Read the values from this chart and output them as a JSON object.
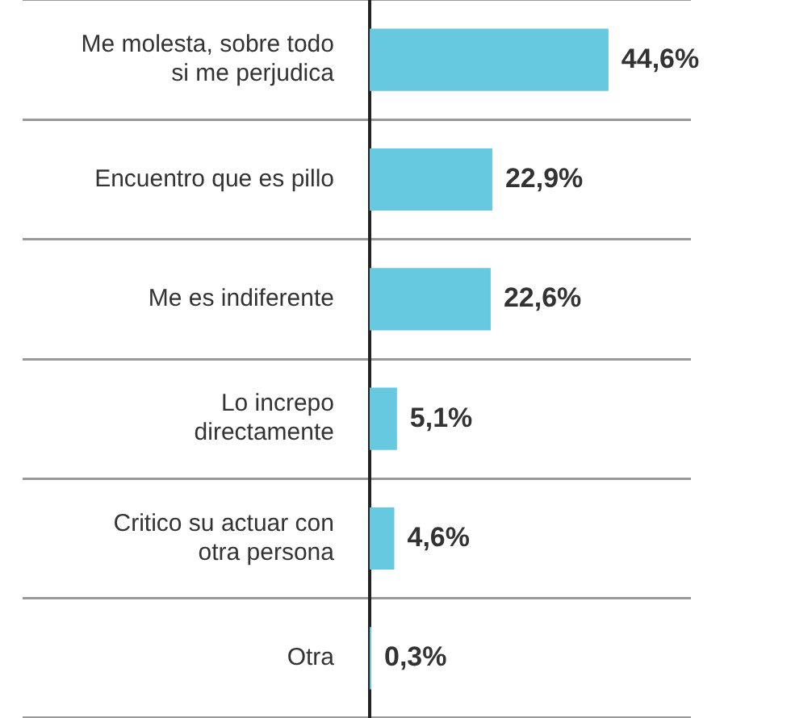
{
  "chart_data": {
    "type": "bar",
    "orientation": "horizontal",
    "categories": [
      "Me molesta, sobre todo si me perjudica",
      "Encuentro que es pillo",
      "Me es indiferente",
      "Lo increpo directamente",
      "Critico su actuar con otra persona",
      "Otra"
    ],
    "values": [
      44.6,
      22.9,
      22.6,
      5.1,
      4.6,
      0.3
    ],
    "value_labels": [
      "44,6%",
      "22,9%",
      "22,6%",
      "5,1%",
      "4,6%",
      "0,3%"
    ],
    "color": "#66c9e0",
    "grid": "y",
    "legend": false,
    "tick_labels": "y"
  }
}
